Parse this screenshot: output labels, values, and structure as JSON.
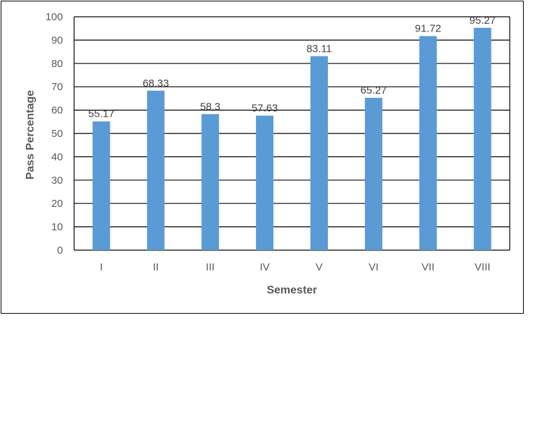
{
  "chart_data": {
    "type": "bar",
    "categories": [
      "I",
      "II",
      "III",
      "IV",
      "V",
      "VI",
      "VII",
      "VIII"
    ],
    "values": [
      55.17,
      68.33,
      58.3,
      57.63,
      83.11,
      65.27,
      91.72,
      95.27
    ],
    "data_labels": [
      "55.17",
      "68.33",
      "58.3",
      "57.63",
      "83.11",
      "65.27",
      "91.72",
      "95.27"
    ],
    "xlabel": "Semester",
    "ylabel": "Pass Percentage",
    "ylim": [
      0,
      100
    ],
    "yticks": [
      0,
      10,
      20,
      30,
      40,
      50,
      60,
      70,
      80,
      90,
      100
    ],
    "grid": true,
    "bar_color": "#5b9bd5"
  }
}
